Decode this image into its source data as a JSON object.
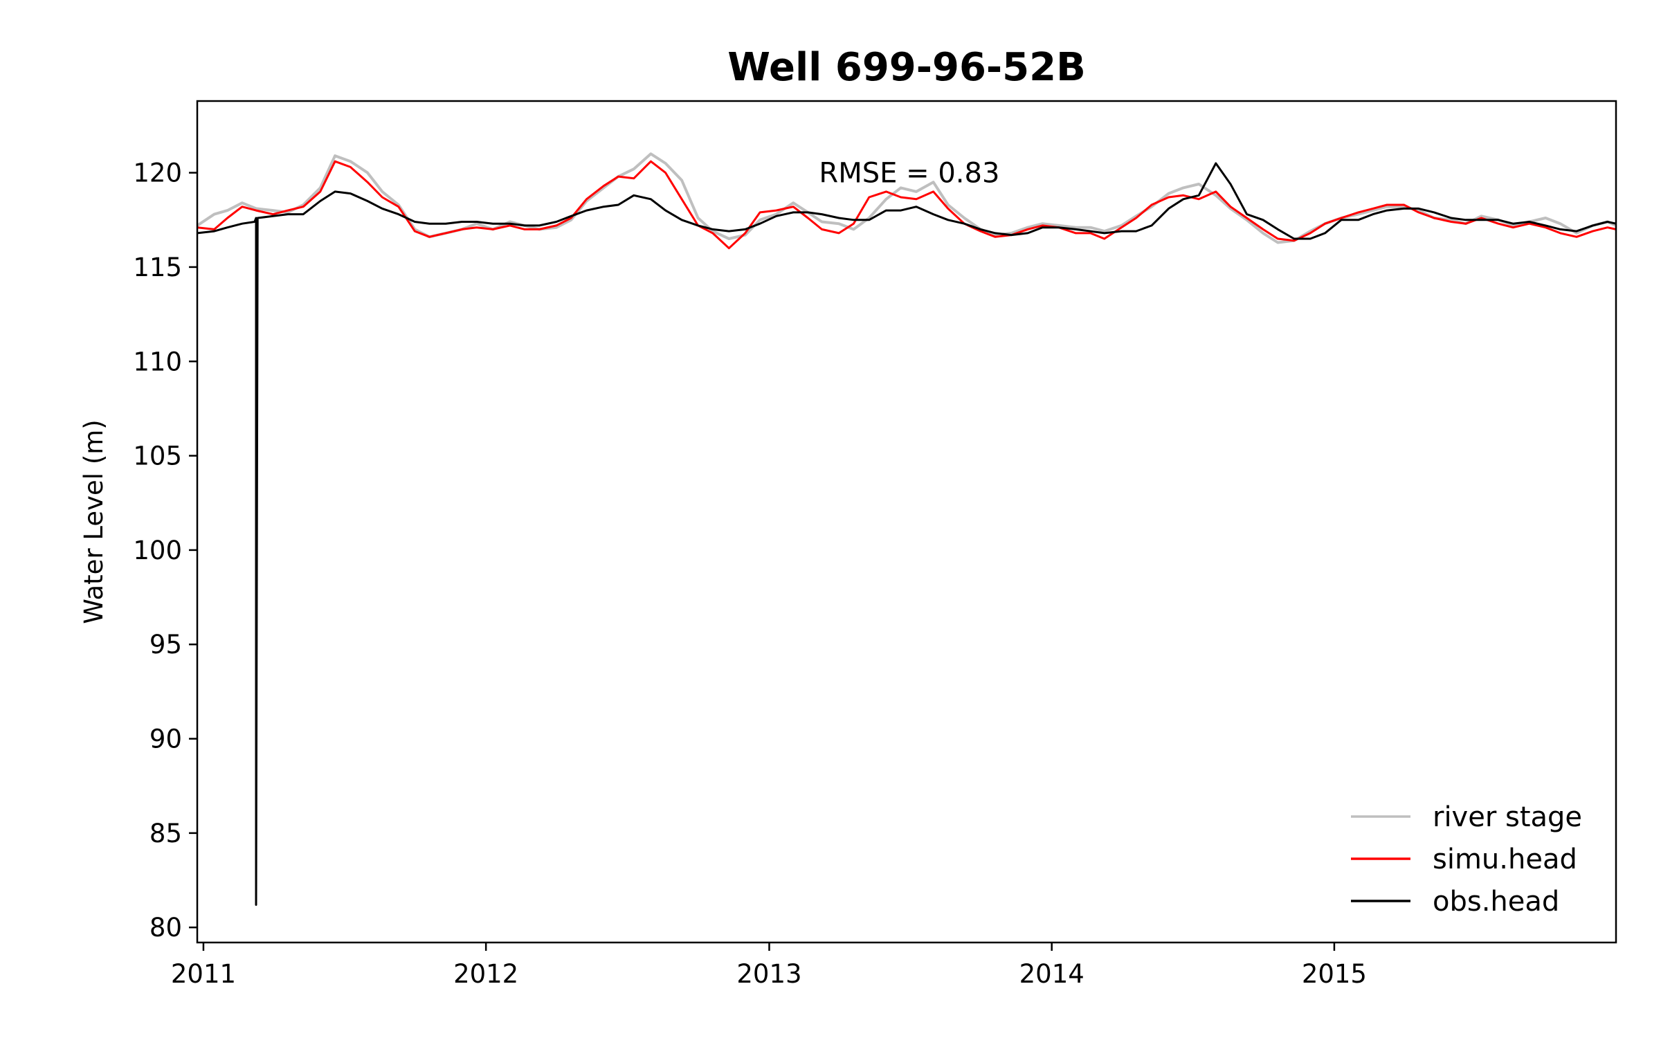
{
  "chart_data": {
    "type": "line",
    "title": "Well 699-96-52B",
    "xlabel": "",
    "ylabel": "Water Level (m)",
    "xlim": [
      "2010-12-24",
      "2015-12-31"
    ],
    "ylim": [
      79.2,
      123.8
    ],
    "x_ticks": [
      "2011",
      "2012",
      "2013",
      "2014",
      "2015"
    ],
    "x_tick_dates": [
      "2011-01-01",
      "2012-01-01",
      "2013-01-01",
      "2014-01-01",
      "2015-01-01"
    ],
    "y_ticks": [
      80,
      85,
      90,
      95,
      100,
      105,
      110,
      115,
      120
    ],
    "grid": false,
    "legend_position": "lower-right",
    "annotation": {
      "text": "RMSE = 0.83",
      "x": "2013-07-01",
      "y": 120
    },
    "series": [
      {
        "name": "river stage",
        "color": "#bfbfbf",
        "x": [
          "2010-12-24",
          "2011-01-15",
          "2011-02-01",
          "2011-02-20",
          "2011-03-10",
          "2011-04-01",
          "2011-04-20",
          "2011-05-10",
          "2011-06-01",
          "2011-06-20",
          "2011-07-10",
          "2011-08-01",
          "2011-08-20",
          "2011-09-10",
          "2011-10-01",
          "2011-10-20",
          "2011-11-10",
          "2011-12-01",
          "2011-12-20",
          "2012-01-10",
          "2012-02-01",
          "2012-02-20",
          "2012-03-10",
          "2012-04-01",
          "2012-04-20",
          "2012-05-10",
          "2012-06-01",
          "2012-06-20",
          "2012-07-10",
          "2012-08-01",
          "2012-08-20",
          "2012-09-10",
          "2012-10-01",
          "2012-10-20",
          "2012-11-10",
          "2012-12-01",
          "2012-12-20",
          "2013-01-10",
          "2013-02-01",
          "2013-02-20",
          "2013-03-10",
          "2013-04-01",
          "2013-04-20",
          "2013-05-10",
          "2013-06-01",
          "2013-06-20",
          "2013-07-10",
          "2013-08-01",
          "2013-08-20",
          "2013-09-10",
          "2013-10-01",
          "2013-10-20",
          "2013-11-10",
          "2013-12-01",
          "2013-12-20",
          "2014-01-10",
          "2014-02-01",
          "2014-02-20",
          "2014-03-10",
          "2014-04-01",
          "2014-04-20",
          "2014-05-10",
          "2014-06-01",
          "2014-06-20",
          "2014-07-10",
          "2014-08-01",
          "2014-08-20",
          "2014-09-10",
          "2014-10-01",
          "2014-10-20",
          "2014-11-10",
          "2014-12-01",
          "2014-12-20",
          "2015-01-10",
          "2015-02-01",
          "2015-02-20",
          "2015-03-10",
          "2015-04-01",
          "2015-04-20",
          "2015-05-10",
          "2015-06-01",
          "2015-06-20",
          "2015-07-10",
          "2015-08-01",
          "2015-08-20",
          "2015-09-10",
          "2015-10-01",
          "2015-10-20",
          "2015-11-10",
          "2015-12-01",
          "2015-12-20",
          "2015-12-31"
        ],
        "y": [
          117.2,
          117.8,
          118.0,
          118.4,
          118.1,
          118.0,
          117.9,
          118.3,
          119.2,
          120.9,
          120.6,
          120.0,
          119.0,
          118.3,
          117.0,
          116.6,
          116.8,
          117.0,
          117.3,
          117.0,
          117.4,
          117.2,
          117.0,
          117.1,
          117.5,
          118.5,
          119.2,
          119.8,
          120.2,
          121.0,
          120.5,
          119.6,
          117.6,
          116.9,
          116.5,
          116.7,
          117.5,
          117.8,
          118.4,
          117.9,
          117.4,
          117.3,
          117.0,
          117.6,
          118.6,
          119.2,
          119.0,
          119.5,
          118.3,
          117.6,
          117.0,
          116.7,
          116.8,
          117.1,
          117.3,
          117.2,
          117.1,
          117.1,
          116.9,
          117.2,
          117.7,
          118.2,
          118.9,
          119.2,
          119.4,
          118.8,
          118.1,
          117.5,
          116.8,
          116.3,
          116.4,
          116.9,
          117.3,
          117.6,
          117.8,
          118.0,
          118.2,
          118.2,
          118.0,
          117.6,
          117.5,
          117.3,
          117.7,
          117.5,
          117.2,
          117.4,
          117.6,
          117.3,
          116.8,
          117.2,
          117.4,
          117.2
        ]
      },
      {
        "name": "simu.head",
        "color": "#ff0000",
        "x": [
          "2010-12-24",
          "2011-01-15",
          "2011-02-01",
          "2011-02-20",
          "2011-03-10",
          "2011-04-01",
          "2011-04-20",
          "2011-05-10",
          "2011-06-01",
          "2011-06-20",
          "2011-07-10",
          "2011-08-01",
          "2011-08-20",
          "2011-09-10",
          "2011-10-01",
          "2011-10-20",
          "2011-11-10",
          "2011-12-01",
          "2011-12-20",
          "2012-01-10",
          "2012-02-01",
          "2012-02-20",
          "2012-03-10",
          "2012-04-01",
          "2012-04-20",
          "2012-05-10",
          "2012-06-01",
          "2012-06-20",
          "2012-07-10",
          "2012-08-01",
          "2012-08-20",
          "2012-09-10",
          "2012-10-01",
          "2012-10-20",
          "2012-11-10",
          "2012-12-01",
          "2012-12-20",
          "2013-01-10",
          "2013-02-01",
          "2013-02-20",
          "2013-03-10",
          "2013-04-01",
          "2013-04-20",
          "2013-05-10",
          "2013-06-01",
          "2013-06-20",
          "2013-07-10",
          "2013-08-01",
          "2013-08-20",
          "2013-09-10",
          "2013-10-01",
          "2013-10-20",
          "2013-11-10",
          "2013-12-01",
          "2013-12-20",
          "2014-01-10",
          "2014-02-01",
          "2014-02-20",
          "2014-03-10",
          "2014-04-01",
          "2014-04-20",
          "2014-05-10",
          "2014-06-01",
          "2014-06-20",
          "2014-07-10",
          "2014-08-01",
          "2014-08-20",
          "2014-09-10",
          "2014-10-01",
          "2014-10-20",
          "2014-11-10",
          "2014-12-01",
          "2014-12-20",
          "2015-01-10",
          "2015-02-01",
          "2015-02-20",
          "2015-03-10",
          "2015-04-01",
          "2015-04-20",
          "2015-05-10",
          "2015-06-01",
          "2015-06-20",
          "2015-07-10",
          "2015-08-01",
          "2015-08-20",
          "2015-09-10",
          "2015-10-01",
          "2015-10-20",
          "2015-11-10",
          "2015-12-01",
          "2015-12-20",
          "2015-12-31"
        ],
        "y": [
          117.1,
          117.0,
          117.6,
          118.2,
          118.0,
          117.8,
          118.0,
          118.2,
          119.0,
          120.6,
          120.3,
          119.5,
          118.7,
          118.2,
          116.9,
          116.6,
          116.8,
          117.0,
          117.1,
          117.0,
          117.2,
          117.0,
          117.0,
          117.2,
          117.6,
          118.6,
          119.3,
          119.8,
          119.7,
          120.6,
          120.0,
          118.6,
          117.2,
          116.8,
          116.0,
          116.8,
          117.9,
          118.0,
          118.2,
          117.6,
          117.0,
          116.8,
          117.3,
          118.7,
          119.0,
          118.7,
          118.6,
          119.0,
          118.1,
          117.3,
          116.9,
          116.6,
          116.7,
          117.0,
          117.2,
          117.1,
          116.8,
          116.8,
          116.5,
          117.1,
          117.6,
          118.3,
          118.7,
          118.8,
          118.6,
          119.0,
          118.2,
          117.6,
          117.0,
          116.5,
          116.4,
          116.8,
          117.3,
          117.6,
          117.9,
          118.1,
          118.3,
          118.3,
          117.9,
          117.6,
          117.4,
          117.3,
          117.6,
          117.3,
          117.1,
          117.3,
          117.1,
          116.8,
          116.6,
          116.9,
          117.1,
          117.0
        ]
      },
      {
        "name": "obs.head",
        "color": "#000000",
        "x": [
          "2010-12-24",
          "2011-01-15",
          "2011-02-01",
          "2011-02-20",
          "2011-03-08",
          "2011-03-10",
          "2011-03-10",
          "2011-03-12",
          "2011-04-01",
          "2011-04-20",
          "2011-05-10",
          "2011-06-01",
          "2011-06-20",
          "2011-07-10",
          "2011-08-01",
          "2011-08-20",
          "2011-09-10",
          "2011-10-01",
          "2011-10-20",
          "2011-11-10",
          "2011-12-01",
          "2011-12-20",
          "2012-01-10",
          "2012-02-01",
          "2012-02-20",
          "2012-03-10",
          "2012-04-01",
          "2012-04-20",
          "2012-05-10",
          "2012-06-01",
          "2012-06-20",
          "2012-07-10",
          "2012-08-01",
          "2012-08-20",
          "2012-09-10",
          "2012-10-01",
          "2012-10-20",
          "2012-11-10",
          "2012-12-01",
          "2012-12-20",
          "2013-01-10",
          "2013-02-01",
          "2013-02-20",
          "2013-03-10",
          "2013-04-01",
          "2013-04-20",
          "2013-05-10",
          "2013-06-01",
          "2013-06-20",
          "2013-07-10",
          "2013-08-01",
          "2013-08-20",
          "2013-09-10",
          "2013-10-01",
          "2013-10-20",
          "2013-11-10",
          "2013-12-01",
          "2013-12-20",
          "2014-01-10",
          "2014-02-01",
          "2014-02-20",
          "2014-03-10",
          "2014-04-01",
          "2014-04-20",
          "2014-05-10",
          "2014-06-01",
          "2014-06-20",
          "2014-07-10",
          "2014-08-01",
          "2014-08-20",
          "2014-09-10",
          "2014-10-01",
          "2014-10-20",
          "2014-11-10",
          "2014-12-01",
          "2014-12-20",
          "2015-01-10",
          "2015-02-01",
          "2015-02-20",
          "2015-03-10",
          "2015-04-01",
          "2015-04-20",
          "2015-05-10",
          "2015-06-01",
          "2015-06-20",
          "2015-07-10",
          "2015-08-01",
          "2015-08-20",
          "2015-09-10",
          "2015-10-01",
          "2015-10-20",
          "2015-11-10",
          "2015-12-01",
          "2015-12-20",
          "2015-12-31"
        ],
        "y": [
          116.8,
          116.9,
          117.1,
          117.3,
          117.4,
          117.6,
          81.2,
          117.6,
          117.7,
          117.8,
          117.8,
          118.5,
          119.0,
          118.9,
          118.5,
          118.1,
          117.8,
          117.4,
          117.3,
          117.3,
          117.4,
          117.4,
          117.3,
          117.3,
          117.2,
          117.2,
          117.4,
          117.7,
          118.0,
          118.2,
          118.3,
          118.8,
          118.6,
          118.0,
          117.5,
          117.2,
          117.0,
          116.9,
          117.0,
          117.3,
          117.7,
          117.9,
          117.9,
          117.8,
          117.6,
          117.5,
          117.5,
          118.0,
          118.0,
          118.2,
          117.8,
          117.5,
          117.3,
          117.0,
          116.8,
          116.7,
          116.8,
          117.1,
          117.1,
          117.0,
          116.9,
          116.8,
          116.9,
          116.9,
          117.2,
          118.1,
          118.6,
          118.8,
          120.5,
          119.4,
          117.8,
          117.5,
          117.0,
          116.5,
          116.5,
          116.8,
          117.5,
          117.5,
          117.8,
          118.0,
          118.1,
          118.1,
          117.9,
          117.6,
          117.5,
          117.5,
          117.5,
          117.3,
          117.4,
          117.2,
          117.0,
          116.9,
          117.2,
          117.4,
          117.3
        ]
      }
    ]
  }
}
